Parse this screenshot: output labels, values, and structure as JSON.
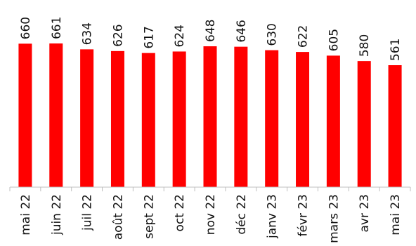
{
  "chart_data": {
    "type": "bar",
    "categories": [
      "mai 22",
      "juin 22",
      "juil 22",
      "août 22",
      "sept 22",
      "oct 22",
      "nov 22",
      "déc 22",
      "janv 23",
      "févr 23",
      "mars 23",
      "avr 23",
      "mai 23"
    ],
    "values": [
      660,
      661,
      634,
      626,
      617,
      624,
      648,
      646,
      630,
      622,
      605,
      580,
      561
    ],
    "data_labels": [
      "660",
      "661",
      "634",
      "626",
      "617",
      "624",
      "648",
      "646",
      "630",
      "622",
      "605",
      "580",
      "561"
    ],
    "ylim": [
      0,
      661
    ],
    "bar_color": "#ff0000",
    "axis_color": "#bfbfbf",
    "grid": false,
    "legend": "none",
    "title": "",
    "xlabel": "",
    "ylabel": ""
  }
}
